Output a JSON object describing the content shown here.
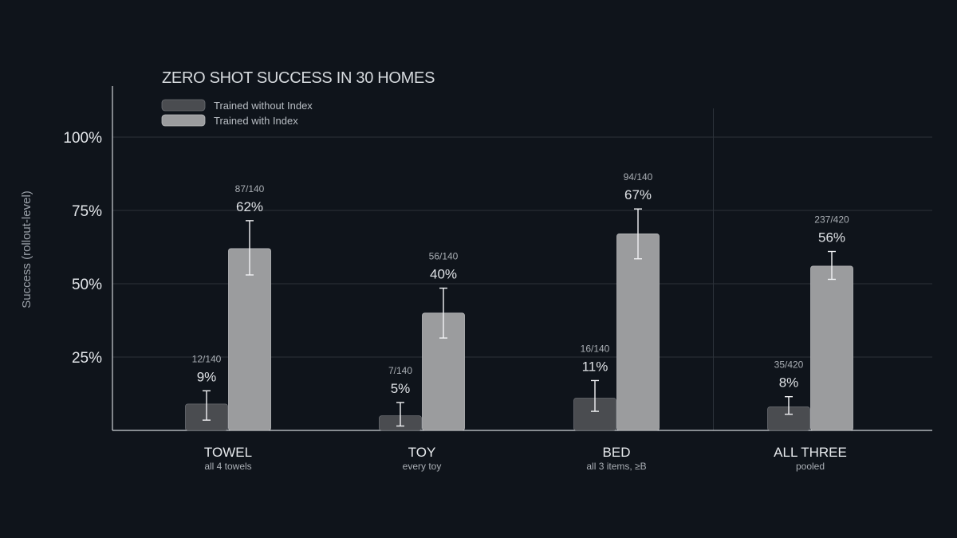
{
  "chart_data": {
    "type": "bar",
    "title": "ZERO SHOT SUCCESS IN 30 HOMES",
    "ylabel": "Success (rollout-level)",
    "ylim": [
      0,
      100
    ],
    "yticks": [
      {
        "value": 25,
        "label": "25%"
      },
      {
        "value": 50,
        "label": "50%"
      },
      {
        "value": 75,
        "label": "75%"
      },
      {
        "value": 100,
        "label": "100%"
      }
    ],
    "categories": [
      "TOWEL",
      "TOY",
      "BED",
      "ALL THREE"
    ],
    "category_subtitles": [
      "all 4 towels",
      "every toy",
      "all 3 items, ≥B",
      "pooled"
    ],
    "series": [
      {
        "name": "Trained without Index",
        "color": "#4a4c50",
        "values": [
          9,
          5,
          11,
          8
        ],
        "value_labels": [
          "9%",
          "5%",
          "11%",
          "8%"
        ],
        "counts": [
          "12/140",
          "7/140",
          "16/140",
          "35/420"
        ],
        "error_low": [
          3.5,
          1.5,
          6.5,
          5.5
        ],
        "error_high": [
          13.5,
          9.5,
          17,
          11.5
        ]
      },
      {
        "name": "Trained with Index",
        "color": "#9b9c9e",
        "values": [
          62,
          40,
          67,
          56
        ],
        "value_labels": [
          "62%",
          "40%",
          "67%",
          "56%"
        ],
        "counts": [
          "87/140",
          "56/140",
          "94/140",
          "237/420"
        ],
        "error_low": [
          53,
          31.5,
          58.5,
          51.5
        ],
        "error_high": [
          71.5,
          48.5,
          75.5,
          61
        ]
      }
    ],
    "grid": true,
    "legend": "top-left",
    "separator_before_category": 3
  }
}
